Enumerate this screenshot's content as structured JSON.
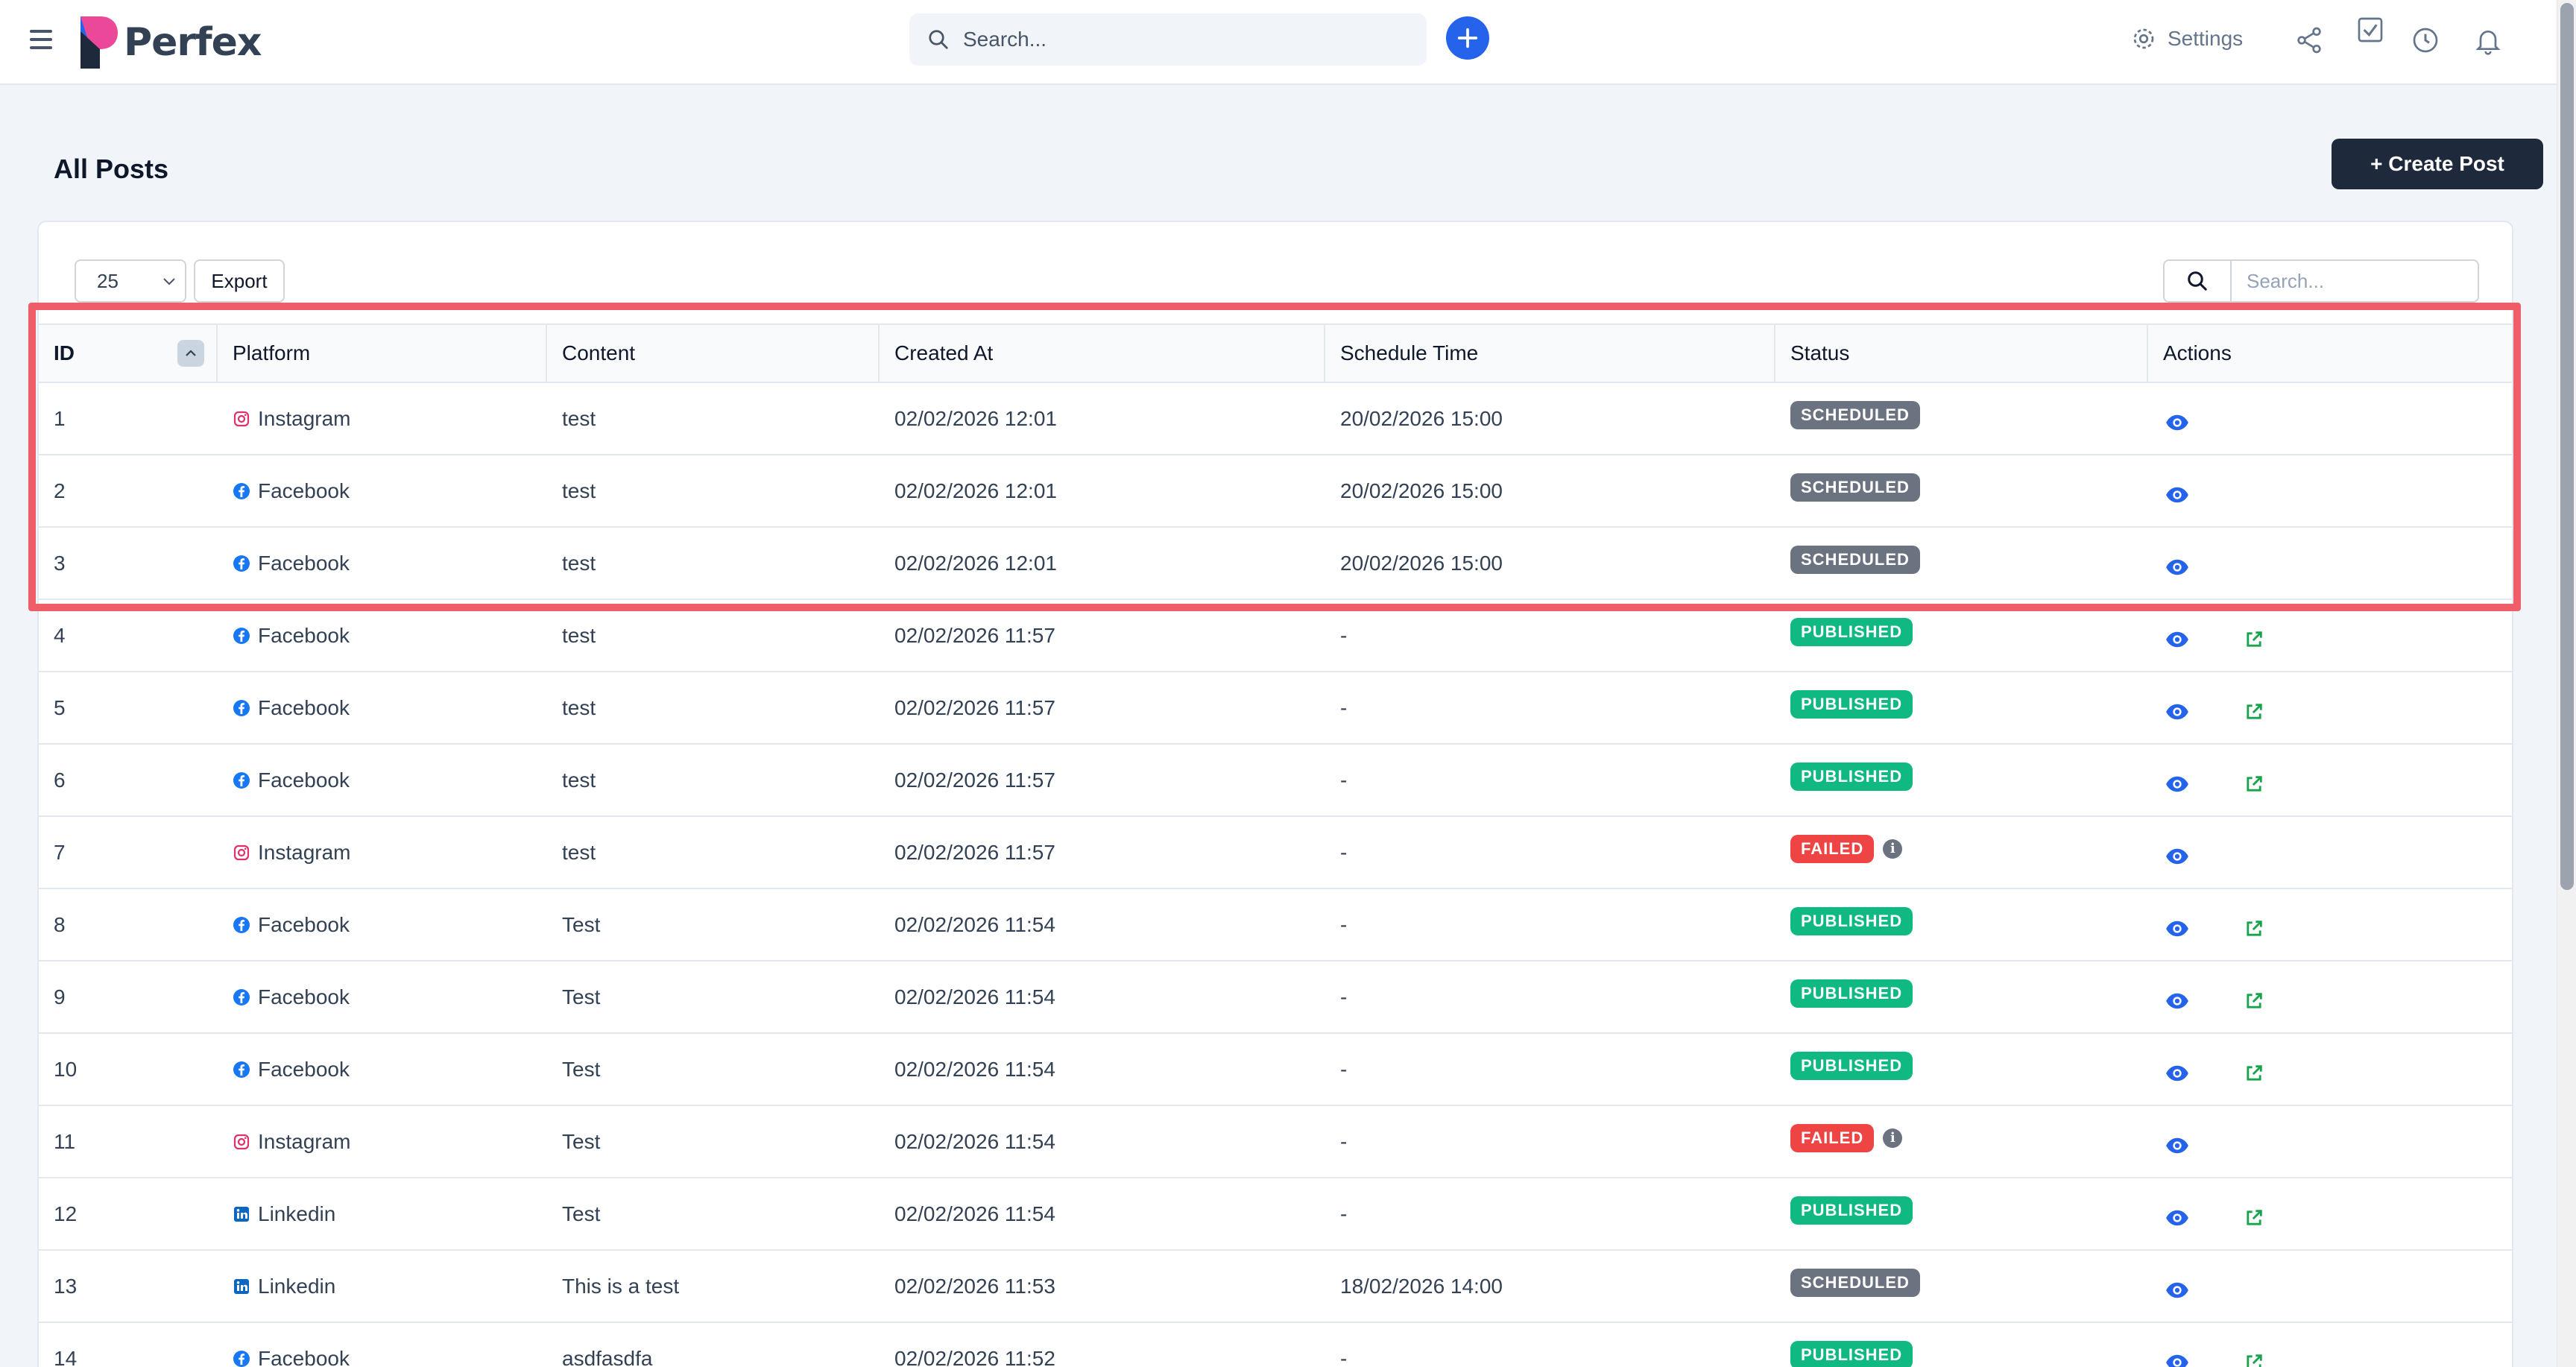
{
  "app": {
    "brand": "Perfex",
    "search_placeholder": "Search...",
    "settings_label": "Settings"
  },
  "page": {
    "title": "All Posts",
    "create_label": "+ Create Post"
  },
  "toolbar": {
    "page_length": "25",
    "export_label": "Export",
    "search_placeholder": "Search..."
  },
  "columns": {
    "id": "ID",
    "platform": "Platform",
    "content": "Content",
    "created": "Created At",
    "schedule": "Schedule Time",
    "status": "Status",
    "actions": "Actions"
  },
  "colors": {
    "scheduled": "#6b7280",
    "published": "#10b981",
    "failed": "#ef4444",
    "instagram": "#e1306c",
    "facebook": "#1877f2",
    "linkedin": "#0a66c2",
    "view": "#2563eb",
    "external": "#16a34a"
  },
  "rows": [
    {
      "id": "1",
      "platform": "Instagram",
      "icon": "instagram-icon",
      "content": "test",
      "created": "02/02/2026 12:01",
      "schedule": "20/02/2026 15:00",
      "status": "SCHEDULED",
      "info": false,
      "external": false
    },
    {
      "id": "2",
      "platform": "Facebook",
      "icon": "facebook-icon",
      "content": "test",
      "created": "02/02/2026 12:01",
      "schedule": "20/02/2026 15:00",
      "status": "SCHEDULED",
      "info": false,
      "external": false
    },
    {
      "id": "3",
      "platform": "Facebook",
      "icon": "facebook-icon",
      "content": "test",
      "created": "02/02/2026 12:01",
      "schedule": "20/02/2026 15:00",
      "status": "SCHEDULED",
      "info": false,
      "external": false
    },
    {
      "id": "4",
      "platform": "Facebook",
      "icon": "facebook-icon",
      "content": "test",
      "created": "02/02/2026 11:57",
      "schedule": "-",
      "status": "PUBLISHED",
      "info": false,
      "external": true
    },
    {
      "id": "5",
      "platform": "Facebook",
      "icon": "facebook-icon",
      "content": "test",
      "created": "02/02/2026 11:57",
      "schedule": "-",
      "status": "PUBLISHED",
      "info": false,
      "external": true
    },
    {
      "id": "6",
      "platform": "Facebook",
      "icon": "facebook-icon",
      "content": "test",
      "created": "02/02/2026 11:57",
      "schedule": "-",
      "status": "PUBLISHED",
      "info": false,
      "external": true
    },
    {
      "id": "7",
      "platform": "Instagram",
      "icon": "instagram-icon",
      "content": "test",
      "created": "02/02/2026 11:57",
      "schedule": "-",
      "status": "FAILED",
      "info": true,
      "external": false
    },
    {
      "id": "8",
      "platform": "Facebook",
      "icon": "facebook-icon",
      "content": "Test",
      "created": "02/02/2026 11:54",
      "schedule": "-",
      "status": "PUBLISHED",
      "info": false,
      "external": true
    },
    {
      "id": "9",
      "platform": "Facebook",
      "icon": "facebook-icon",
      "content": "Test",
      "created": "02/02/2026 11:54",
      "schedule": "-",
      "status": "PUBLISHED",
      "info": false,
      "external": true
    },
    {
      "id": "10",
      "platform": "Facebook",
      "icon": "facebook-icon",
      "content": "Test",
      "created": "02/02/2026 11:54",
      "schedule": "-",
      "status": "PUBLISHED",
      "info": false,
      "external": true
    },
    {
      "id": "11",
      "platform": "Instagram",
      "icon": "instagram-icon",
      "content": "Test",
      "created": "02/02/2026 11:54",
      "schedule": "-",
      "status": "FAILED",
      "info": true,
      "external": false
    },
    {
      "id": "12",
      "platform": "Linkedin",
      "icon": "linkedin-icon",
      "content": "Test",
      "created": "02/02/2026 11:54",
      "schedule": "-",
      "status": "PUBLISHED",
      "info": false,
      "external": true
    },
    {
      "id": "13",
      "platform": "Linkedin",
      "icon": "linkedin-icon",
      "content": "This is a test",
      "created": "02/02/2026 11:53",
      "schedule": "18/02/2026 14:00",
      "status": "SCHEDULED",
      "info": false,
      "external": false
    },
    {
      "id": "14",
      "platform": "Facebook",
      "icon": "facebook-icon",
      "content": "asdfasdfa",
      "created": "02/02/2026 11:52",
      "schedule": "-",
      "status": "PUBLISHED",
      "info": false,
      "external": true
    }
  ]
}
